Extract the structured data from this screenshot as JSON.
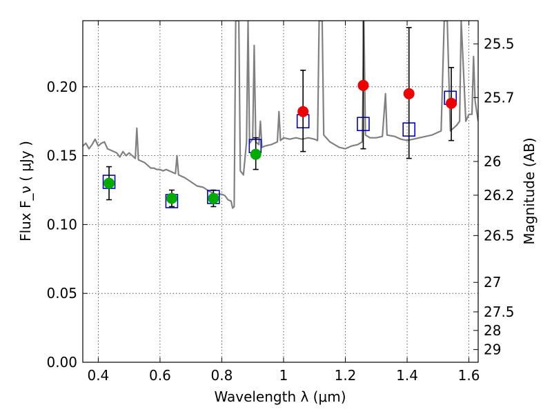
{
  "chart_data": {
    "type": "scatter",
    "xlabel": "Wavelength  λ (μm)",
    "ylabel": "Flux  F_ν  ( μJy )",
    "y2label": "Magnitude (AB)",
    "xlim": [
      0.35,
      1.63
    ],
    "ylim": [
      0.0,
      0.248
    ],
    "grid": true,
    "x_ticks": [
      0.4,
      0.6,
      0.8,
      1.0,
      1.2,
      1.4,
      1.6
    ],
    "x_tick_labels": [
      "0.4",
      "0.6",
      "0.8",
      "1",
      "1.2",
      "1.4",
      "1.6"
    ],
    "y_ticks": [
      0.0,
      0.05,
      0.1,
      0.15,
      0.2
    ],
    "y_tick_labels": [
      "0.00",
      "0.05",
      "0.10",
      "0.15",
      "0.20"
    ],
    "y2_ticks": [
      {
        "label": "25.5",
        "flux": 0.2311
      },
      {
        "label": "25.7",
        "flux": 0.1922
      },
      {
        "label": "26",
        "flux": 0.1458
      },
      {
        "label": "26.2",
        "flux": 0.1213
      },
      {
        "label": "26.5",
        "flux": 0.092
      },
      {
        "label": "27",
        "flux": 0.058
      },
      {
        "label": "27.5",
        "flux": 0.0366
      },
      {
        "label": "28",
        "flux": 0.0231
      },
      {
        "label": "29",
        "flux": 0.0092
      }
    ],
    "model_spectrum": {
      "color": "#808080",
      "points": [
        [
          0.35,
          0.157
        ],
        [
          0.36,
          0.159
        ],
        [
          0.37,
          0.155
        ],
        [
          0.38,
          0.158
        ],
        [
          0.39,
          0.162
        ],
        [
          0.4,
          0.157
        ],
        [
          0.41,
          0.159
        ],
        [
          0.42,
          0.16
        ],
        [
          0.43,
          0.155
        ],
        [
          0.44,
          0.154
        ],
        [
          0.45,
          0.153
        ],
        [
          0.46,
          0.152
        ],
        [
          0.47,
          0.149
        ],
        [
          0.48,
          0.153
        ],
        [
          0.49,
          0.15
        ],
        [
          0.5,
          0.152
        ],
        [
          0.51,
          0.15
        ],
        [
          0.52,
          0.148
        ],
        [
          0.525,
          0.17
        ],
        [
          0.53,
          0.147
        ],
        [
          0.54,
          0.146
        ],
        [
          0.55,
          0.145
        ],
        [
          0.56,
          0.143
        ],
        [
          0.57,
          0.141
        ],
        [
          0.58,
          0.141
        ],
        [
          0.59,
          0.14
        ],
        [
          0.6,
          0.14
        ],
        [
          0.61,
          0.139
        ],
        [
          0.62,
          0.14
        ],
        [
          0.63,
          0.139
        ],
        [
          0.64,
          0.138
        ],
        [
          0.65,
          0.137
        ],
        [
          0.655,
          0.15
        ],
        [
          0.66,
          0.136
        ],
        [
          0.68,
          0.134
        ],
        [
          0.7,
          0.131
        ],
        [
          0.72,
          0.128
        ],
        [
          0.74,
          0.127
        ],
        [
          0.76,
          0.124
        ],
        [
          0.78,
          0.122
        ],
        [
          0.8,
          0.122
        ],
        [
          0.81,
          0.121
        ],
        [
          0.82,
          0.118
        ],
        [
          0.83,
          0.117
        ],
        [
          0.835,
          0.112
        ],
        [
          0.84,
          0.113
        ],
        [
          0.845,
          0.248
        ],
        [
          0.855,
          0.248
        ],
        [
          0.86,
          0.139
        ],
        [
          0.87,
          0.136
        ],
        [
          0.88,
          0.16
        ],
        [
          0.885,
          0.248
        ],
        [
          0.89,
          0.159
        ],
        [
          0.9,
          0.162
        ],
        [
          0.905,
          0.23
        ],
        [
          0.91,
          0.16
        ],
        [
          0.92,
          0.158
        ],
        [
          0.925,
          0.175
        ],
        [
          0.93,
          0.156
        ],
        [
          0.94,
          0.157
        ],
        [
          0.96,
          0.158
        ],
        [
          0.98,
          0.16
        ],
        [
          0.985,
          0.182
        ],
        [
          0.99,
          0.161
        ],
        [
          1.0,
          0.163
        ],
        [
          1.02,
          0.162
        ],
        [
          1.04,
          0.163
        ],
        [
          1.06,
          0.162
        ],
        [
          1.08,
          0.163
        ],
        [
          1.1,
          0.162
        ],
        [
          1.11,
          0.161
        ],
        [
          1.115,
          0.248
        ],
        [
          1.125,
          0.248
        ],
        [
          1.13,
          0.165
        ],
        [
          1.15,
          0.16
        ],
        [
          1.18,
          0.156
        ],
        [
          1.2,
          0.155
        ],
        [
          1.22,
          0.157
        ],
        [
          1.24,
          0.158
        ],
        [
          1.255,
          0.16
        ],
        [
          1.26,
          0.248
        ],
        [
          1.265,
          0.165
        ],
        [
          1.28,
          0.163
        ],
        [
          1.3,
          0.163
        ],
        [
          1.32,
          0.164
        ],
        [
          1.33,
          0.195
        ],
        [
          1.335,
          0.165
        ],
        [
          1.36,
          0.164
        ],
        [
          1.38,
          0.162
        ],
        [
          1.4,
          0.161
        ],
        [
          1.42,
          0.162
        ],
        [
          1.44,
          0.163
        ],
        [
          1.46,
          0.164
        ],
        [
          1.48,
          0.165
        ],
        [
          1.5,
          0.167
        ],
        [
          1.51,
          0.168
        ],
        [
          1.52,
          0.248
        ],
        [
          1.53,
          0.248
        ],
        [
          1.54,
          0.168
        ],
        [
          1.56,
          0.172
        ],
        [
          1.57,
          0.175
        ],
        [
          1.575,
          0.248
        ],
        [
          1.59,
          0.175
        ],
        [
          1.6,
          0.18
        ],
        [
          1.61,
          0.18
        ],
        [
          1.615,
          0.222
        ],
        [
          1.62,
          0.19
        ],
        [
          1.63,
          0.175
        ]
      ]
    },
    "model_points": {
      "marker": "open-square",
      "color": "#0000cc",
      "points": [
        {
          "x": 0.435,
          "y": 0.131
        },
        {
          "x": 0.638,
          "y": 0.117
        },
        {
          "x": 0.773,
          "y": 0.12
        },
        {
          "x": 0.908,
          "y": 0.157
        },
        {
          "x": 1.063,
          "y": 0.175
        },
        {
          "x": 1.258,
          "y": 0.173
        },
        {
          "x": 1.406,
          "y": 0.169
        },
        {
          "x": 1.54,
          "y": 0.192
        }
      ]
    },
    "observations": [
      {
        "x": 0.435,
        "y": 0.13,
        "err_low": 0.118,
        "err_high": 0.142,
        "color": "#00aa00"
      },
      {
        "x": 0.638,
        "y": 0.119,
        "err_low": 0.113,
        "err_high": 0.125,
        "color": "#00aa00"
      },
      {
        "x": 0.773,
        "y": 0.119,
        "err_low": 0.113,
        "err_high": 0.125,
        "color": "#00aa00"
      },
      {
        "x": 0.91,
        "y": 0.151,
        "err_low": 0.14,
        "err_high": 0.163,
        "color": "#00aa00"
      },
      {
        "x": 1.063,
        "y": 0.182,
        "err_low": 0.153,
        "err_high": 0.212,
        "color": "#ee0000"
      },
      {
        "x": 1.258,
        "y": 0.201,
        "err_low": 0.155,
        "err_high": 0.248,
        "color": "#ee0000"
      },
      {
        "x": 1.406,
        "y": 0.195,
        "err_low": 0.148,
        "err_high": 0.243,
        "color": "#ee0000"
      },
      {
        "x": 1.543,
        "y": 0.188,
        "err_low": 0.161,
        "err_high": 0.214,
        "color": "#ee0000"
      }
    ]
  }
}
